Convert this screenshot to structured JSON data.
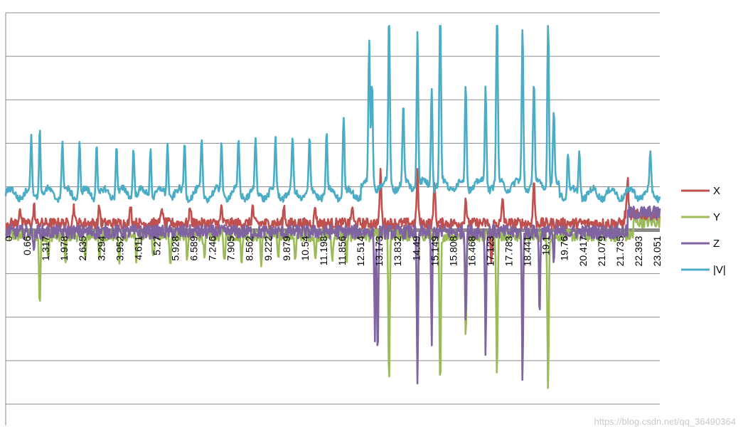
{
  "chart_data": {
    "type": "line",
    "title": "",
    "xlabel": "",
    "ylabel": "",
    "grid": true,
    "legend_position": "right",
    "x_start": 0,
    "x_step": 0.022,
    "x_count": 1048,
    "x_tick_labels": [
      "0",
      "0.66",
      "1.317",
      "1.978",
      "2.635",
      "3.294",
      "3.952",
      "4.611",
      "5.27",
      "5.928",
      "6.589",
      "7.246",
      "7.905",
      "8.562",
      "9.222",
      "9.879",
      "10.54",
      "11.198",
      "11.856",
      "12.514",
      "13.173",
      "13.832",
      "14.49",
      "15.149",
      "15.808",
      "16.468",
      "17.123",
      "17.783",
      "18.441",
      "19.1",
      "19.76",
      "20.417",
      "21.079",
      "21.735",
      "22.393",
      "23.051"
    ],
    "ylim": [
      -20,
      25
    ],
    "series": [
      {
        "name": "X",
        "color": "#c0504d"
      },
      {
        "name": "Y",
        "color": "#9bbb59"
      },
      {
        "name": "Z",
        "color": "#8064a2"
      },
      {
        "name": "|V|",
        "color": "#4bacc6"
      }
    ],
    "spikes": {
      "V": [
        [
          0.9,
          6
        ],
        [
          1.2,
          8
        ],
        [
          2.0,
          6
        ],
        [
          2.6,
          6
        ],
        [
          3.2,
          6
        ],
        [
          3.9,
          6
        ],
        [
          4.5,
          6
        ],
        [
          5.1,
          6
        ],
        [
          5.7,
          6
        ],
        [
          6.3,
          6
        ],
        [
          6.9,
          6
        ],
        [
          7.6,
          6
        ],
        [
          8.2,
          6
        ],
        [
          8.8,
          6
        ],
        [
          9.5,
          6
        ],
        [
          10.1,
          6
        ],
        [
          10.7,
          6
        ],
        [
          11.3,
          6.5
        ],
        [
          11.9,
          9
        ],
        [
          12.8,
          16
        ],
        [
          12.9,
          12
        ],
        [
          13.5,
          20
        ],
        [
          14.0,
          9
        ],
        [
          14.5,
          18
        ],
        [
          15.0,
          12
        ],
        [
          15.3,
          22
        ],
        [
          16.2,
          12
        ],
        [
          16.9,
          12
        ],
        [
          17.3,
          22
        ],
        [
          18.2,
          18
        ],
        [
          19.1,
          20
        ],
        [
          18.6,
          12
        ],
        [
          19.3,
          8
        ],
        [
          19.8,
          5
        ],
        [
          20.2,
          5
        ],
        [
          22.7,
          4
        ]
      ],
      "Y": [
        [
          1.2,
          -8
        ],
        [
          1.5,
          -3
        ],
        [
          2.1,
          -3
        ],
        [
          2.8,
          -3
        ],
        [
          3.3,
          -3
        ],
        [
          4.0,
          -3
        ],
        [
          4.6,
          -3
        ],
        [
          5.2,
          -3
        ],
        [
          5.8,
          -3
        ],
        [
          6.4,
          -3
        ],
        [
          7.0,
          -3
        ],
        [
          7.7,
          -3
        ],
        [
          8.3,
          -3
        ],
        [
          9.0,
          -3
        ],
        [
          9.6,
          -3
        ],
        [
          10.2,
          -3
        ],
        [
          10.9,
          -3
        ],
        [
          11.5,
          -3
        ],
        [
          12.0,
          -3
        ],
        [
          13.5,
          -17
        ],
        [
          14.5,
          -16
        ],
        [
          15.3,
          -18
        ],
        [
          16.2,
          -12
        ],
        [
          17.3,
          -16
        ],
        [
          18.2,
          -14
        ],
        [
          19.1,
          -18
        ]
      ],
      "Z": [
        [
          1.0,
          -2
        ],
        [
          13.1,
          -15
        ],
        [
          13.0,
          -12
        ],
        [
          14.5,
          -18
        ],
        [
          15.0,
          -13
        ],
        [
          16.2,
          -10
        ],
        [
          16.9,
          -14
        ],
        [
          18.2,
          -17
        ],
        [
          18.8,
          -10
        ],
        [
          19.3,
          -4
        ]
      ],
      "X": [
        [
          0.5,
          2
        ],
        [
          1.0,
          2
        ],
        [
          2.4,
          2
        ],
        [
          3.3,
          2
        ],
        [
          4.4,
          2
        ],
        [
          5.5,
          2
        ],
        [
          6.5,
          2
        ],
        [
          7.6,
          2
        ],
        [
          8.7,
          2
        ],
        [
          9.8,
          2
        ],
        [
          10.9,
          2
        ],
        [
          12.2,
          2
        ],
        [
          13.2,
          6
        ],
        [
          14.5,
          6
        ],
        [
          15.1,
          5
        ],
        [
          16.2,
          3
        ],
        [
          17.1,
          -5
        ],
        [
          17.5,
          3
        ],
        [
          18.6,
          5
        ],
        [
          21.9,
          4
        ]
      ]
    }
  },
  "watermark": "https://blog.csdn.net/qq_36490364"
}
